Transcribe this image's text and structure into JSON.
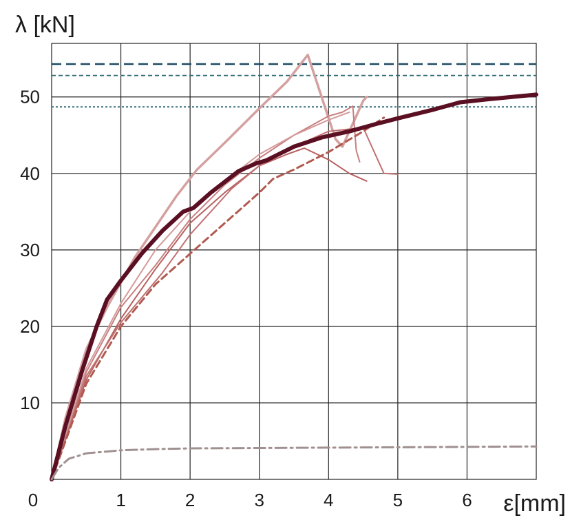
{
  "chart_data": {
    "type": "line",
    "title": "",
    "xlabel": "ε[mm]",
    "ylabel": "λ [kN]",
    "xlim": [
      0,
      7
    ],
    "ylim": [
      0,
      57
    ],
    "x_ticks": [
      1,
      2,
      3,
      4,
      5,
      6
    ],
    "x_tick_labels": [
      "1",
      "2",
      "3",
      "4",
      "5",
      "6"
    ],
    "y_ticks": [
      10,
      20,
      30,
      40,
      50
    ],
    "y_tick_labels": [
      "10",
      "20",
      "30",
      "40",
      "50"
    ],
    "origin_label": "0",
    "grid": true,
    "reference_lines": [
      {
        "y": 54.3,
        "style": "long-dash",
        "color": "#1e4a63"
      },
      {
        "y": 52.8,
        "style": "short-dash",
        "color": "#2f6b73"
      },
      {
        "y": 48.7,
        "style": "dotted",
        "color": "#2f6b73"
      }
    ],
    "series": [
      {
        "style": "solid",
        "width": 3.5,
        "color": "#d4a0a0",
        "points": [
          [
            0,
            0
          ],
          [
            0.2,
            8
          ],
          [
            0.5,
            17
          ],
          [
            0.8,
            22.5
          ],
          [
            1.2,
            29
          ],
          [
            1.5,
            33
          ],
          [
            1.8,
            37
          ],
          [
            2.1,
            40.5
          ],
          [
            2.5,
            44
          ],
          [
            3.0,
            48.5
          ],
          [
            3.4,
            52
          ],
          [
            3.7,
            55.5
          ],
          [
            3.9,
            50
          ],
          [
            4.1,
            44.5
          ],
          [
            4.2,
            43.5
          ],
          [
            4.35,
            46.5
          ],
          [
            4.5,
            49.5
          ],
          [
            4.55,
            50
          ]
        ]
      },
      {
        "style": "solid",
        "width": 2,
        "color": "#c88080",
        "points": [
          [
            0,
            0
          ],
          [
            0.5,
            14
          ],
          [
            1.0,
            22.5
          ],
          [
            1.5,
            28
          ],
          [
            2.0,
            34
          ],
          [
            2.5,
            38.5
          ],
          [
            3.0,
            42
          ],
          [
            3.5,
            45
          ],
          [
            4.0,
            47.5
          ],
          [
            4.2,
            48
          ],
          [
            4.35,
            48.8
          ],
          [
            4.4,
            43
          ],
          [
            4.45,
            41.5
          ]
        ]
      },
      {
        "style": "solid",
        "width": 2,
        "color": "#b86060",
        "points": [
          [
            0,
            0
          ],
          [
            0.5,
            13
          ],
          [
            1.0,
            21
          ],
          [
            1.5,
            27.5
          ],
          [
            2.0,
            33.5
          ],
          [
            2.5,
            37.5
          ],
          [
            3.0,
            41
          ],
          [
            3.4,
            42.5
          ],
          [
            3.65,
            43.3
          ],
          [
            4.0,
            41.8
          ],
          [
            4.3,
            40
          ],
          [
            4.55,
            39
          ]
        ]
      },
      {
        "style": "solid",
        "width": 2,
        "color": "#c07070",
        "points": [
          [
            0,
            0
          ],
          [
            0.5,
            13.5
          ],
          [
            1.0,
            20.5
          ],
          [
            1.6,
            27
          ],
          [
            2.0,
            32
          ],
          [
            2.6,
            38
          ],
          [
            3.0,
            41
          ],
          [
            3.5,
            43.5
          ],
          [
            4.0,
            45.5
          ],
          [
            4.5,
            46
          ],
          [
            4.6,
            44
          ],
          [
            4.8,
            40
          ],
          [
            5.0,
            39.9
          ]
        ]
      },
      {
        "style": "solid",
        "width": 2,
        "color": "#d49a9a",
        "points": [
          [
            0,
            0
          ],
          [
            0.5,
            14.5
          ],
          [
            1.0,
            23
          ],
          [
            1.5,
            30
          ],
          [
            2.0,
            35
          ],
          [
            2.5,
            39
          ],
          [
            3.0,
            42.5
          ],
          [
            3.5,
            45
          ],
          [
            4.0,
            47
          ],
          [
            4.3,
            48
          ]
        ]
      },
      {
        "style": "dashed",
        "width": 3,
        "color": "#b05a50",
        "points": [
          [
            0,
            0
          ],
          [
            0.5,
            12.5
          ],
          [
            1.0,
            20
          ],
          [
            1.5,
            25.5
          ],
          [
            2.0,
            29.5
          ],
          [
            2.5,
            33.5
          ],
          [
            3.0,
            37.5
          ],
          [
            3.2,
            39.3
          ],
          [
            3.5,
            40.5
          ],
          [
            4.0,
            42.8
          ],
          [
            4.5,
            45.5
          ],
          [
            4.8,
            47.3
          ]
        ]
      },
      {
        "style": "solid",
        "width": 6,
        "color": "#5a0f22",
        "points": [
          [
            0,
            0
          ],
          [
            0.2,
            7
          ],
          [
            0.45,
            14.5
          ],
          [
            0.65,
            20
          ],
          [
            0.8,
            23.5
          ],
          [
            1.0,
            26
          ],
          [
            1.3,
            29.5
          ],
          [
            1.6,
            32.5
          ],
          [
            1.9,
            35
          ],
          [
            2.05,
            35.5
          ],
          [
            2.3,
            37.5
          ],
          [
            2.7,
            40.3
          ],
          [
            2.95,
            41.3
          ],
          [
            3.1,
            41.7
          ],
          [
            3.5,
            43.5
          ],
          [
            3.9,
            44.7
          ],
          [
            4.3,
            45.5
          ],
          [
            4.7,
            46.5
          ],
          [
            5.0,
            47.2
          ],
          [
            5.5,
            48.3
          ],
          [
            5.9,
            49.3
          ],
          [
            6.3,
            49.7
          ],
          [
            7.0,
            50.3
          ]
        ]
      },
      {
        "style": "dash-dot",
        "width": 3,
        "color": "#a09090",
        "points": [
          [
            0,
            0
          ],
          [
            0.1,
            1.5
          ],
          [
            0.25,
            2.7
          ],
          [
            0.5,
            3.4
          ],
          [
            1.0,
            3.8
          ],
          [
            1.5,
            3.95
          ],
          [
            2.0,
            4.05
          ],
          [
            3.0,
            4.1
          ],
          [
            4.0,
            4.15
          ],
          [
            5.0,
            4.2
          ],
          [
            6.0,
            4.25
          ],
          [
            7.0,
            4.3
          ]
        ]
      }
    ]
  }
}
